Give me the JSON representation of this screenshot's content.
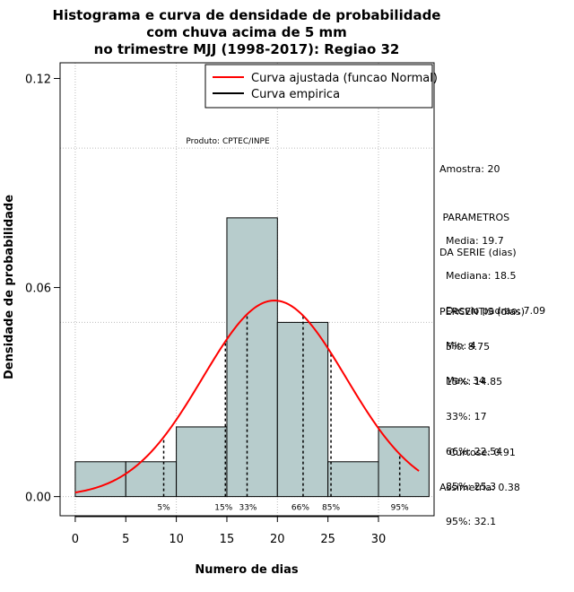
{
  "colors": {
    "bar_fill": "#b7cccc",
    "normal_curve": "#ff0000",
    "empirical_curve": "#000000",
    "grid": "#bbbbbb"
  },
  "chart_data": {
    "type": "histogram",
    "title": [
      "Histograma e curva de densidade de probabilidade",
      "com chuva acima de 5 mm",
      "no trimestre MJJ (1998-2017): Regiao 32"
    ],
    "xlabel": "Numero de dias",
    "ylabel": "Densidade de probabilidade",
    "xlim": [
      -1.5,
      35.5
    ],
    "ylim": [
      -0.0055,
      0.1245
    ],
    "x_ticks": [
      0,
      5,
      10,
      15,
      20,
      25,
      30
    ],
    "x_tick_labels": [
      "0",
      "5",
      "10",
      "15",
      "20",
      "25",
      "30"
    ],
    "y_ticks": [
      0.0,
      0.06,
      0.12
    ],
    "y_tick_labels": [
      "0.00",
      "0.06",
      "0.12"
    ],
    "grid_x": [
      0,
      10,
      20,
      30
    ],
    "grid_y": [
      0.0,
      0.1,
      0.05
    ],
    "bins": [
      {
        "start": 0,
        "end": 5,
        "density": 0.01
      },
      {
        "start": 5,
        "end": 10,
        "density": 0.01
      },
      {
        "start": 10,
        "end": 15,
        "density": 0.02
      },
      {
        "start": 15,
        "end": 20,
        "density": 0.08
      },
      {
        "start": 20,
        "end": 25,
        "density": 0.05
      },
      {
        "start": 25,
        "end": 30,
        "density": 0.01
      },
      {
        "start": 30,
        "end": 35,
        "density": 0.02
      }
    ],
    "normal_fit": {
      "mean": 19.7,
      "sd": 7.09,
      "x_range": [
        0,
        34
      ]
    },
    "percentile_lines": [
      {
        "label": "5%",
        "x": 8.75
      },
      {
        "label": "15%",
        "x": 14.85
      },
      {
        "label": "33%",
        "x": 17
      },
      {
        "label": "66%",
        "x": 22.54
      },
      {
        "label": "85%",
        "x": 25.3
      },
      {
        "label": "95%",
        "x": 32.1
      }
    ],
    "legend": {
      "position": "top-right",
      "entries": [
        {
          "label": "Curva ajustada (funcao Normal)",
          "color": "#ff0000"
        },
        {
          "label": "Curva empirica",
          "color": "#000000"
        }
      ]
    },
    "annotation": "Produto: CPTEC/INPE"
  },
  "side_panel": {
    "sample": "Amostra: 20",
    "params_header": [
      " PARAMETROS",
      "DA SERIE (dias)"
    ],
    "params": [
      "  Media: 19.7",
      "  Mediana: 18.5",
      "  Desvio padrao: 7.09",
      "  Min: 4",
      "  Max: 34"
    ],
    "percentis_header": "PERCENTIS (dias)",
    "percentis": [
      "  5%: 8.75",
      "  15%: 14.85",
      "  33%: 17",
      "  66%: 22.54",
      "  85%: 25.3",
      "  95%: 32.1"
    ],
    "stats": [
      "   Curtose: 0.91",
      "Assimetria: 0.38"
    ]
  }
}
